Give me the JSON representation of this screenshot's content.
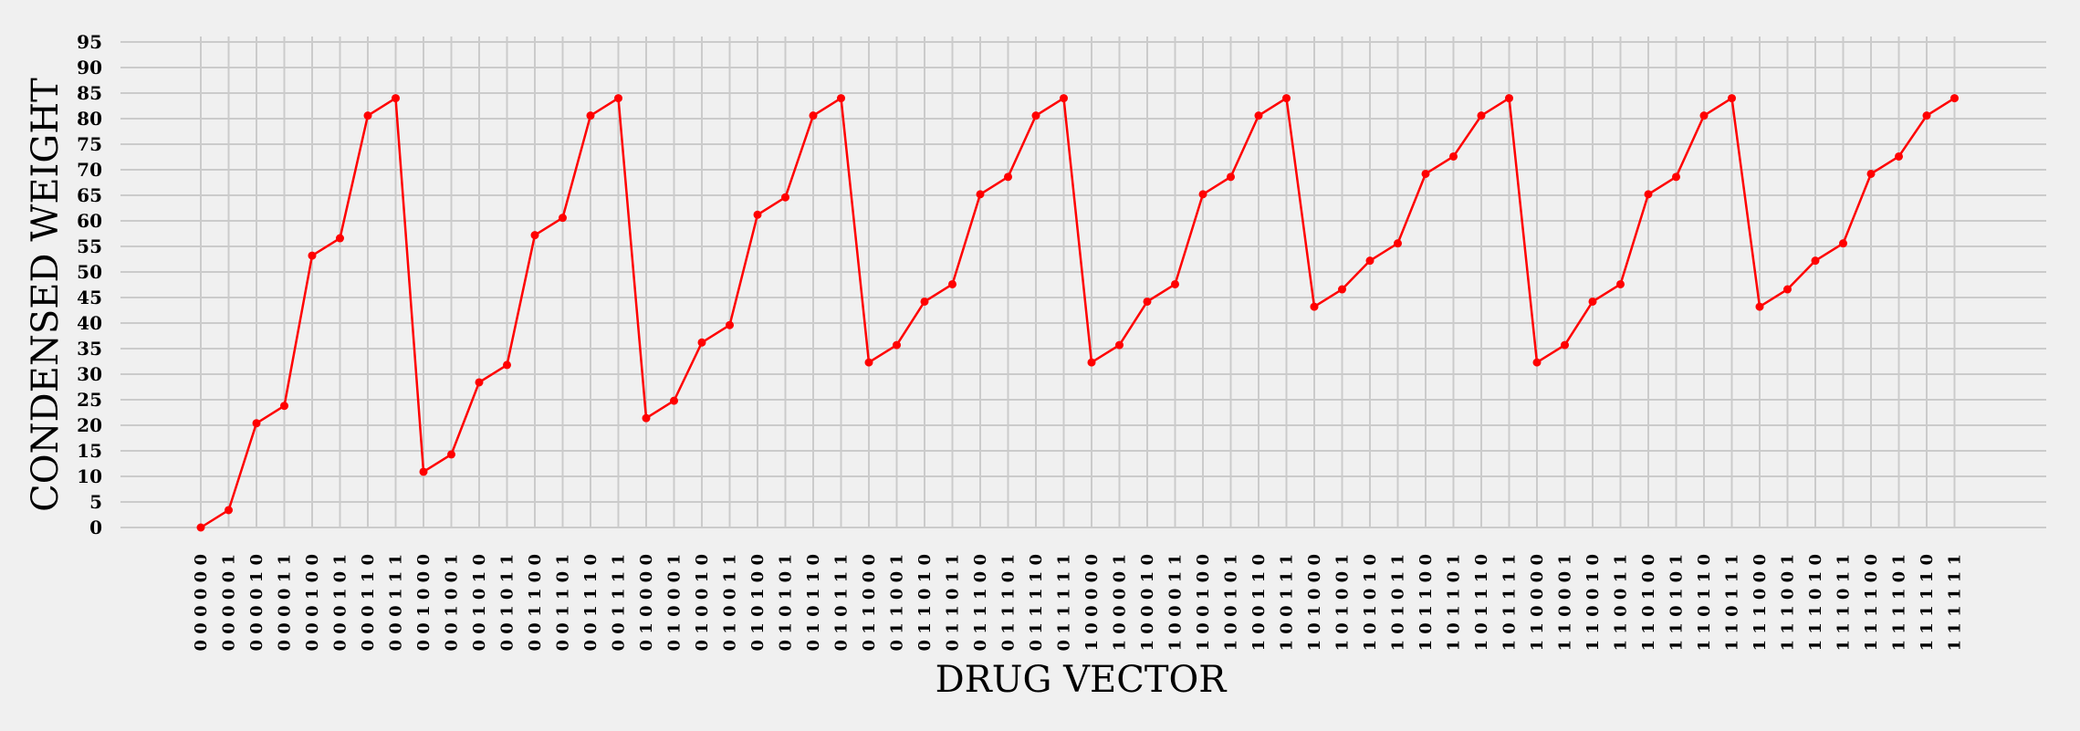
{
  "chart_data": {
    "type": "line",
    "title": "",
    "xlabel": "DRUG VECTOR",
    "ylabel": "CONDENSED WEIGHT",
    "ylim": [
      0,
      95
    ],
    "y_ticks": [
      0,
      5,
      10,
      15,
      20,
      25,
      30,
      35,
      40,
      45,
      50,
      55,
      60,
      65,
      70,
      75,
      80,
      85,
      90,
      95
    ],
    "grid": true,
    "legend": "none",
    "series_color": "#ff0000",
    "categories": [
      "0 0 0 0 0 0",
      "0 0 0 0 0 1",
      "0 0 0 0 1 0",
      "0 0 0 0 1 1",
      "0 0 0 1 0 0",
      "0 0 0 1 0 1",
      "0 0 0 1 1 0",
      "0 0 0 1 1 1",
      "0 0 1 0 0 0",
      "0 0 1 0 0 1",
      "0 0 1 0 1 0",
      "0 0 1 0 1 1",
      "0 0 1 1 0 0",
      "0 0 1 1 0 1",
      "0 0 1 1 1 0",
      "0 0 1 1 1 1",
      "0 1 0 0 0 0",
      "0 1 0 0 0 1",
      "0 1 0 0 1 0",
      "0 1 0 0 1 1",
      "0 1 0 1 0 0",
      "0 1 0 1 0 1",
      "0 1 0 1 1 0",
      "0 1 0 1 1 1",
      "0 1 1 0 0 0",
      "0 1 1 0 0 1",
      "0 1 1 0 1 0",
      "0 1 1 0 1 1",
      "0 1 1 1 0 0",
      "0 1 1 1 0 1",
      "0 1 1 1 1 0",
      "0 1 1 1 1 1",
      "1 0 0 0 0 0",
      "1 0 0 0 0 1",
      "1 0 0 0 1 0",
      "1 0 0 0 1 1",
      "1 0 0 1 0 0",
      "1 0 0 1 0 1",
      "1 0 0 1 1 0",
      "1 0 0 1 1 1",
      "1 0 1 0 0 0",
      "1 0 1 0 0 1",
      "1 0 1 0 1 0",
      "1 0 1 0 1 1",
      "1 0 1 1 0 0",
      "1 0 1 1 0 1",
      "1 0 1 1 1 0",
      "1 0 1 1 1 1",
      "1 1 0 0 0 0",
      "1 1 0 0 0 1",
      "1 1 0 0 1 0",
      "1 1 0 0 1 1",
      "1 1 0 1 0 0",
      "1 1 0 1 0 1",
      "1 1 0 1 1 0",
      "1 1 0 1 1 1",
      "1 1 1 0 0 0",
      "1 1 1 0 0 1",
      "1 1 1 0 1 0",
      "1 1 1 0 1 1",
      "1 1 1 1 0 0",
      "1 1 1 1 0 1",
      "1 1 1 1 1 0",
      "1 1 1 1 1 1"
    ],
    "values": [
      0,
      3.4,
      20.4,
      23.8,
      53.2,
      56.6,
      80.6,
      84,
      10.9,
      14.3,
      28.4,
      31.8,
      57.2,
      60.6,
      80.6,
      84,
      21.4,
      24.8,
      36.2,
      39.6,
      61.2,
      64.6,
      80.6,
      84,
      32.3,
      35.7,
      44.2,
      47.6,
      65.2,
      68.6,
      80.6,
      84,
      32.3,
      35.7,
      44.2,
      47.6,
      65.2,
      68.6,
      80.6,
      84,
      43.2,
      46.6,
      52.2,
      55.6,
      69.2,
      72.6,
      80.6,
      84,
      32.3,
      35.7,
      44.2,
      47.6,
      65.2,
      68.6,
      80.6,
      84,
      43.2,
      46.6,
      52.2,
      55.6,
      69.2,
      72.6,
      80.6,
      84
    ]
  }
}
